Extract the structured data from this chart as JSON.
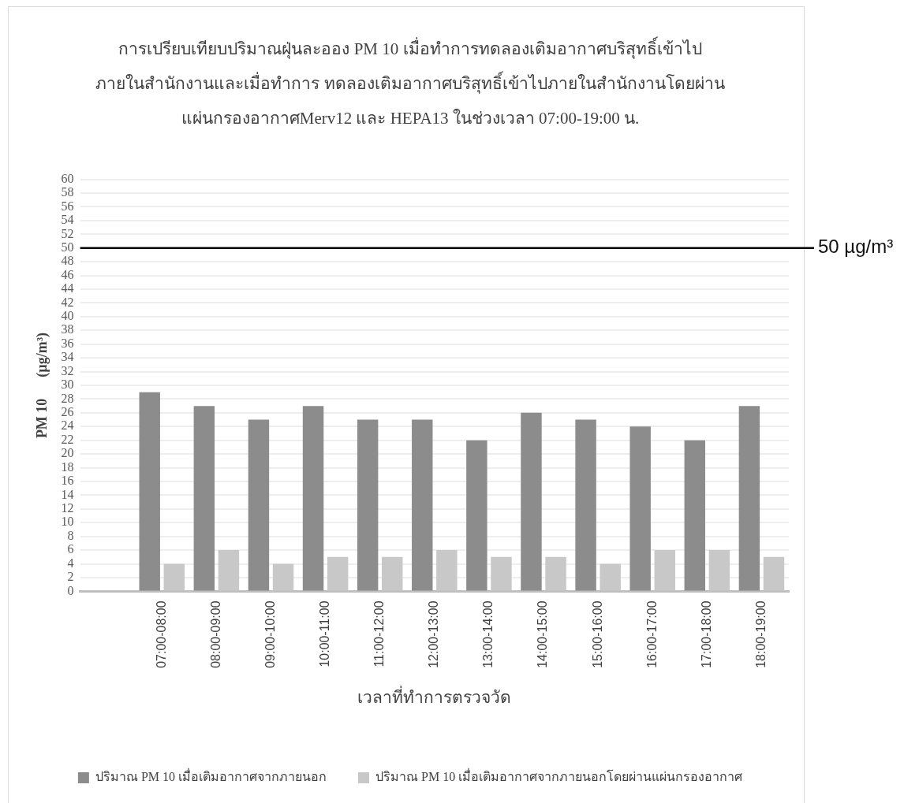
{
  "chart_data": {
    "type": "bar",
    "title": "การเปรียบเทียบปริมาณฝุ่นละออง  PM 10 เมื่อทำการทดลองเติมอากาศบริสุทธิ์เข้าไปภายในสำนักงานและเมื่อทำการ ทดลองเติมอากาศบริสุทธิ์เข้าไปภายในสำนักงานโดยผ่านแผ่นกรองอากาศMerv12  และ  HEPA13  ในช่วงเวลา 07:00-19:00 น.",
    "xlabel": "เวลาที่ทำการตรวจวัด",
    "ylabel": "PM 10      (µg/m³)",
    "categories": [
      null,
      "07:00-08:00",
      "08:00-09:00",
      "09:00-10:00",
      "10:00-11:00",
      "11:00-12:00",
      "12:00-13:00",
      "13:00-14:00",
      "14:00-15:00",
      "15:00-16:00",
      "16:00-17:00",
      "17:00-18:00",
      "18:00-19:00"
    ],
    "series": [
      {
        "name": "ปริมาณ PM 10 เมื่อเติมอากาศจากภายนอก",
        "color": "#8c8c8c",
        "values": [
          null,
          29,
          27,
          25,
          27,
          25,
          25,
          22,
          26,
          25,
          24,
          22,
          27
        ]
      },
      {
        "name": "ปริมาณ PM 10 เมื่อเติมอากาศจากภายนอกโดยผ่านแผ่นกรองอากาศ",
        "color": "#c8c8c8",
        "values": [
          null,
          4,
          6,
          4,
          5,
          5,
          6,
          5,
          5,
          4,
          6,
          6,
          5
        ]
      }
    ],
    "ylim": [
      0,
      60
    ],
    "yticks": [
      0,
      2,
      4,
      6,
      8,
      10,
      12,
      14,
      16,
      18,
      20,
      22,
      24,
      26,
      28,
      30,
      32,
      34,
      36,
      38,
      40,
      42,
      44,
      46,
      48,
      50,
      52,
      54,
      56,
      58,
      60
    ],
    "grid": "y",
    "legend": "bottom",
    "ref_lines": [
      {
        "axis": "y",
        "value": 50,
        "label": "50 µg/m³",
        "color": "#000000"
      }
    ]
  }
}
